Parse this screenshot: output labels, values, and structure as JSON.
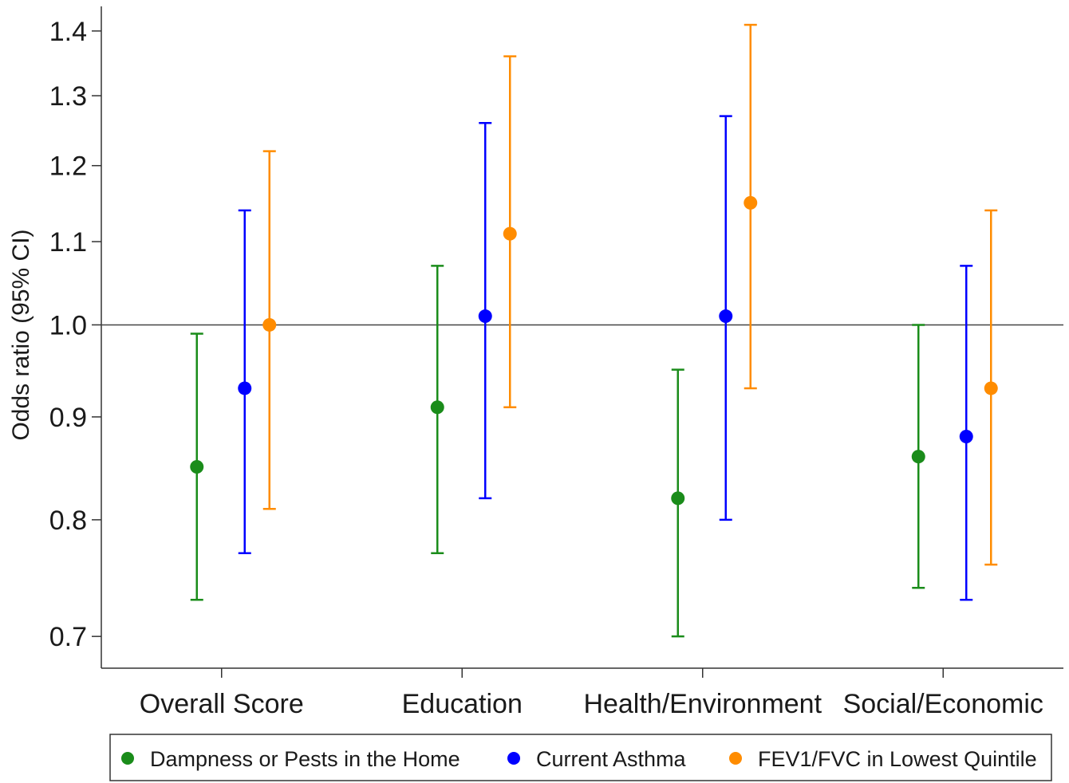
{
  "chart_data": {
    "type": "scatter",
    "subtype": "point-with-error-bars",
    "title": "",
    "xlabel": "",
    "ylabel": "Odds ratio (95% CI)",
    "yscale": "log",
    "ylim": [
      0.675,
      1.44
    ],
    "yticks": [
      0.7,
      0.8,
      0.9,
      1.0,
      1.1,
      1.2,
      1.3,
      1.4
    ],
    "ytick_labels": [
      "0.7",
      "0.8",
      "0.9",
      "1.0",
      "1.1",
      "1.2",
      "1.3",
      "1.4"
    ],
    "reference_line": 1.0,
    "grid": false,
    "legend_position": "bottom",
    "categories": [
      "Overall Score",
      "Education",
      "Health/Environment",
      "Social/Economic"
    ],
    "series": [
      {
        "name": "Dampness or Pests in the Home",
        "color": "#1a8c1a",
        "values": [
          0.85,
          0.91,
          0.82,
          0.86
        ],
        "lower": [
          0.73,
          0.77,
          0.7,
          0.74
        ],
        "upper": [
          0.99,
          1.07,
          0.95,
          1.0
        ]
      },
      {
        "name": "Current Asthma",
        "color": "#0000ff",
        "values": [
          0.93,
          1.01,
          1.01,
          0.88
        ],
        "lower": [
          0.77,
          0.82,
          0.8,
          0.73
        ],
        "upper": [
          1.14,
          1.26,
          1.27,
          1.07
        ]
      },
      {
        "name": "FEV1/FVC in Lowest Quintile",
        "color": "#ff8c00",
        "values": [
          1.0,
          1.11,
          1.15,
          0.93
        ],
        "lower": [
          0.81,
          0.91,
          0.93,
          0.76
        ],
        "upper": [
          1.22,
          1.36,
          1.41,
          1.14
        ]
      }
    ]
  }
}
